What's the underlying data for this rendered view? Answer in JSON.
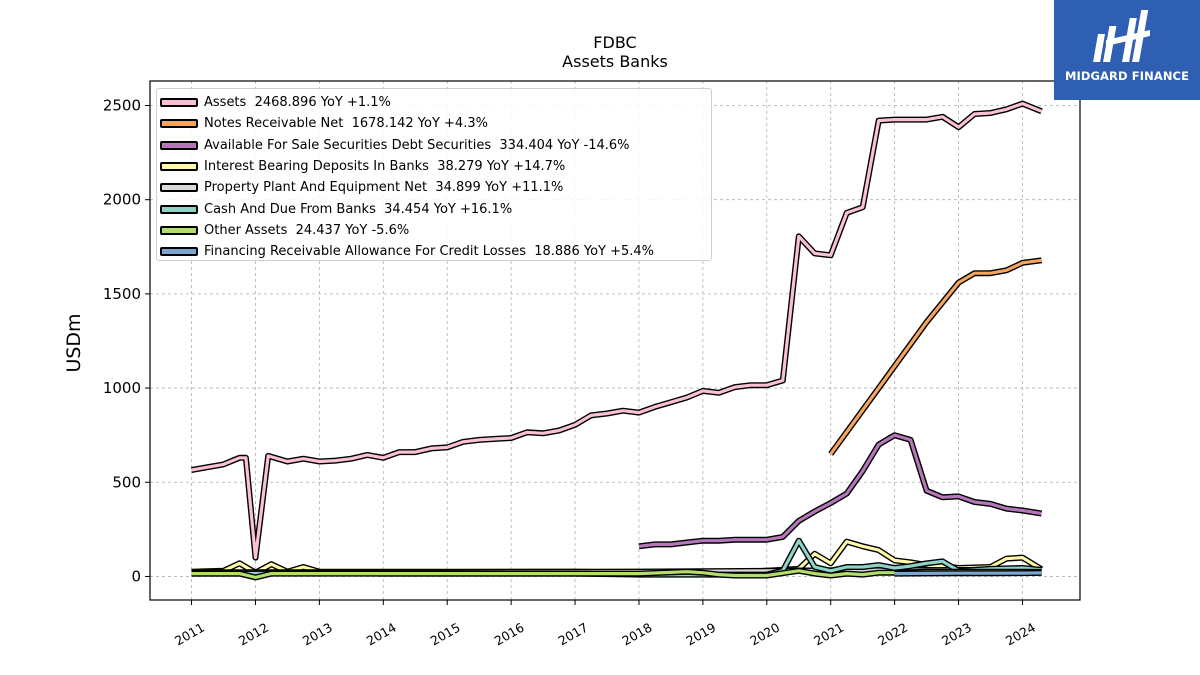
{
  "chart_data": {
    "type": "line",
    "title": "FDBC",
    "subtitle": "Assets Banks",
    "ylabel": "USDm",
    "xlabel": "",
    "ylim": [
      -125,
      2630
    ],
    "xlim": [
      2010.35,
      2024.9
    ],
    "yticks": [
      0,
      500,
      1000,
      1500,
      2000,
      2500
    ],
    "xticks": [
      "2011",
      "2012",
      "2013",
      "2014",
      "2015",
      "2016",
      "2017",
      "2018",
      "2019",
      "2020",
      "2021",
      "2022",
      "2023",
      "2024"
    ],
    "grid": true,
    "legend_position": "top-left",
    "series": [
      {
        "name": "Assets",
        "legend": "Assets  2468.896 YoY +1.1%",
        "color": "#f9c0d8",
        "x": [
          2011.0,
          2011.25,
          2011.5,
          2011.75,
          2011.85,
          2012.0,
          2012.2,
          2012.5,
          2012.75,
          2013.0,
          2013.25,
          2013.5,
          2013.75,
          2014.0,
          2014.25,
          2014.5,
          2014.75,
          2015.0,
          2015.25,
          2015.5,
          2015.75,
          2016.0,
          2016.25,
          2016.5,
          2016.75,
          2017.0,
          2017.25,
          2017.5,
          2017.75,
          2018.0,
          2018.25,
          2018.5,
          2018.75,
          2019.0,
          2019.25,
          2019.5,
          2019.75,
          2020.0,
          2020.25,
          2020.5,
          2020.75,
          2021.0,
          2021.25,
          2021.5,
          2021.75,
          2022.0,
          2022.25,
          2022.5,
          2022.75,
          2023.0,
          2023.25,
          2023.5,
          2023.75,
          2024.0,
          2024.3
        ],
        "y": [
          565,
          580,
          595,
          630,
          630,
          100,
          640,
          610,
          625,
          610,
          615,
          625,
          645,
          630,
          660,
          660,
          680,
          685,
          715,
          725,
          730,
          735,
          765,
          760,
          775,
          805,
          855,
          865,
          880,
          870,
          900,
          925,
          950,
          985,
          975,
          1005,
          1015,
          1015,
          1040,
          1805,
          1715,
          1705,
          1930,
          1960,
          2420,
          2425,
          2425,
          2425,
          2440,
          2385,
          2455,
          2460,
          2480,
          2510,
          2469
        ]
      },
      {
        "name": "Notes Receivable Net",
        "legend": "Notes Receivable Net  1678.142 YoY +4.3%",
        "color": "#f5a55c",
        "x": [
          2021.0,
          2021.75,
          2022.5,
          2023.0,
          2023.25,
          2023.5,
          2023.75,
          2024.0,
          2024.3
        ],
        "y": [
          650,
          1000,
          1350,
          1560,
          1610,
          1610,
          1625,
          1665,
          1678
        ]
      },
      {
        "name": "Available For Sale Securities Debt Securities",
        "legend": "Available For Sale Securities Debt Securities  334.404 YoY -14.6%",
        "color": "#b576ba",
        "x": [
          2018.0,
          2018.25,
          2018.5,
          2018.75,
          2019.0,
          2019.25,
          2019.5,
          2019.75,
          2020.0,
          2020.25,
          2020.5,
          2020.75,
          2021.0,
          2021.25,
          2021.5,
          2021.75,
          2022.0,
          2022.25,
          2022.5,
          2022.75,
          2023.0,
          2023.25,
          2023.5,
          2023.75,
          2024.0,
          2024.3
        ],
        "y": [
          160,
          170,
          170,
          180,
          190,
          190,
          195,
          195,
          195,
          210,
          295,
          345,
          390,
          440,
          560,
          700,
          750,
          725,
          455,
          420,
          425,
          395,
          385,
          360,
          350,
          334
        ]
      },
      {
        "name": "Interest Bearing Deposits In Banks",
        "legend": "Interest Bearing Deposits In Banks  38.279 YoY +14.7%",
        "color": "#fffaaa",
        "x": [
          2011.0,
          2011.5,
          2011.75,
          2012.0,
          2012.25,
          2012.5,
          2012.75,
          2013.0,
          2014.0,
          2015.0,
          2016.0,
          2017.0,
          2018.0,
          2019.0,
          2020.0,
          2020.5,
          2020.75,
          2021.0,
          2021.25,
          2021.5,
          2021.75,
          2022.0,
          2022.25,
          2022.5,
          2022.75,
          2023.0,
          2023.5,
          2023.75,
          2024.0,
          2024.3
        ],
        "y": [
          25,
          30,
          70,
          20,
          65,
          25,
          50,
          25,
          25,
          25,
          25,
          25,
          20,
          15,
          30,
          40,
          120,
          70,
          185,
          160,
          140,
          85,
          75,
          60,
          55,
          45,
          50,
          95,
          100,
          38
        ]
      },
      {
        "name": "Property Plant And Equipment Net",
        "legend": "Property Plant And Equipment Net  34.899 YoY +11.1%",
        "color": "#d9d9d9",
        "x": [
          2011.0,
          2012.0,
          2013.0,
          2014.0,
          2015.0,
          2016.0,
          2017.0,
          2018.0,
          2019.0,
          2020.0,
          2021.0,
          2022.0,
          2023.0,
          2024.3
        ],
        "y": [
          22,
          22,
          22,
          22,
          23,
          24,
          25,
          26,
          28,
          30,
          32,
          33,
          34,
          35
        ]
      },
      {
        "name": "Cash And Due From Banks",
        "legend": "Cash And Due From Banks  34.454 YoY +16.1%",
        "color": "#8dd3c7",
        "x": [
          2011.0,
          2012.0,
          2013.0,
          2014.0,
          2015.0,
          2016.0,
          2017.0,
          2018.0,
          2019.0,
          2020.0,
          2020.25,
          2020.5,
          2020.75,
          2021.0,
          2021.25,
          2021.5,
          2021.75,
          2022.0,
          2022.25,
          2022.5,
          2022.75,
          2023.0,
          2023.5,
          2024.0,
          2024.3
        ],
        "y": [
          15,
          15,
          20,
          15,
          15,
          15,
          15,
          10,
          10,
          10,
          30,
          190,
          50,
          30,
          50,
          50,
          60,
          45,
          55,
          70,
          80,
          30,
          40,
          45,
          34
        ]
      },
      {
        "name": "Other Assets",
        "legend": "Other Assets  24.437 YoY -5.6%",
        "color": "#b3de69",
        "x": [
          2011.0,
          2011.75,
          2012.0,
          2012.25,
          2013.0,
          2014.0,
          2015.0,
          2016.0,
          2017.0,
          2017.5,
          2018.0,
          2018.75,
          2019.0,
          2019.25,
          2019.5,
          2020.0,
          2020.5,
          2020.75,
          2021.0,
          2021.25,
          2021.5,
          2021.75,
          2022.0,
          2022.5,
          2023.0,
          2024.0,
          2024.3
        ],
        "y": [
          15,
          15,
          -5,
          15,
          15,
          15,
          15,
          15,
          15,
          15,
          15,
          25,
          20,
          10,
          5,
          5,
          30,
          15,
          5,
          15,
          10,
          20,
          20,
          25,
          25,
          25,
          24
        ]
      },
      {
        "name": "Financing Receivable Allowance For Credit Losses",
        "legend": "Financing Receivable Allowance For Credit Losses  18.886 YoY +5.4%",
        "color": "#7aa7cf",
        "x": [
          2022.0,
          2022.5,
          2023.0,
          2023.5,
          2024.0,
          2024.3
        ],
        "y": [
          15,
          16,
          17,
          17,
          18,
          19
        ]
      }
    ]
  },
  "brand": {
    "name": "MIDGARD FINANCE",
    "bg_color": "#2f5fb3"
  }
}
